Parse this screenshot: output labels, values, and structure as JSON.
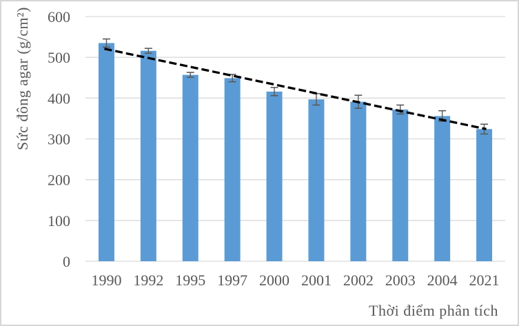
{
  "chart_data": {
    "type": "bar",
    "title": "",
    "xlabel": "Thời điểm phân tích",
    "ylabel": "Sức đông agar (g/cm²)",
    "categories": [
      "1990",
      "1992",
      "1995",
      "1997",
      "2000",
      "2001",
      "2002",
      "2003",
      "2004",
      "2021"
    ],
    "series": [
      {
        "name": "Sức đông agar",
        "values": [
          535,
          516,
          457,
          449,
          416,
          397,
          391,
          372,
          356,
          324
        ],
        "error_bars": [
          10,
          6,
          6,
          9,
          10,
          14,
          16,
          11,
          13,
          12
        ]
      }
    ],
    "trendline": {
      "type": "linear",
      "style": "dashed",
      "color": "#000000",
      "start_value": 521,
      "end_value": 324
    },
    "y_ticks": [
      "0",
      "100",
      "200",
      "300",
      "400",
      "500",
      "600"
    ],
    "ylim": [
      0,
      600
    ],
    "grid": "horizontal",
    "legend": "none",
    "colors": {
      "bar": "#5B9BD5",
      "error_bar": "#595959",
      "gridline": "#D9D9D9",
      "tick_text": "#595959"
    }
  }
}
